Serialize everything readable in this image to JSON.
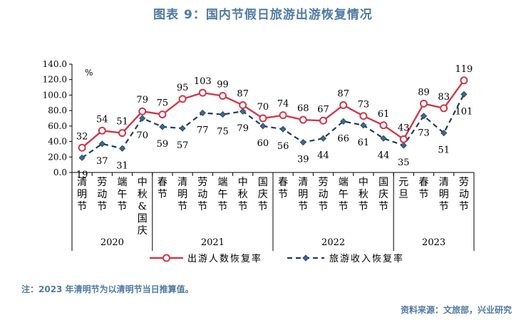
{
  "title": "图表 9：国内节假日旅游出游恢复情况",
  "note": "注：2023 年清明节为以清明节当日推算值。",
  "source": "资料来源：文旅部，兴业研究",
  "chart_data": {
    "type": "line",
    "unit": "%",
    "ylim": [
      0,
      140
    ],
    "yticks": [
      "0.0",
      "20.0",
      "40.0",
      "60.0",
      "80.0",
      "100.0",
      "120.0",
      "140.0"
    ],
    "categories": [
      "清明节",
      "劳动节",
      "端午节",
      "中秋&国庆",
      "春节",
      "清明节",
      "劳动节",
      "端午节",
      "中秋节",
      "国庆节",
      "春节",
      "清明节",
      "劳动节",
      "端午节",
      "中秋节",
      "国庆节",
      "元旦",
      "春节",
      "清明节",
      "劳动节"
    ],
    "year_groups": [
      {
        "label": "2020",
        "count": 4
      },
      {
        "label": "2021",
        "count": 6
      },
      {
        "label": "2022",
        "count": 6
      },
      {
        "label": "2023",
        "count": 4
      }
    ],
    "series": [
      {
        "name": "出游人数恢复率",
        "color": "#d0384a",
        "style": "solid-circle",
        "values": [
          32,
          54,
          51,
          79,
          75,
          95,
          103,
          99,
          87,
          70,
          74,
          68,
          67,
          87,
          73,
          61,
          43,
          89,
          83,
          119
        ]
      },
      {
        "name": "旅游收入恢复率",
        "color": "#1f3d5c",
        "style": "dashed-diamond",
        "values": [
          19,
          37,
          31,
          70,
          59,
          57,
          77,
          75,
          79,
          60,
          56,
          39,
          44,
          66,
          61,
          44,
          35,
          73,
          51,
          101
        ]
      }
    ],
    "legend_position": "bottom",
    "grid": false
  }
}
